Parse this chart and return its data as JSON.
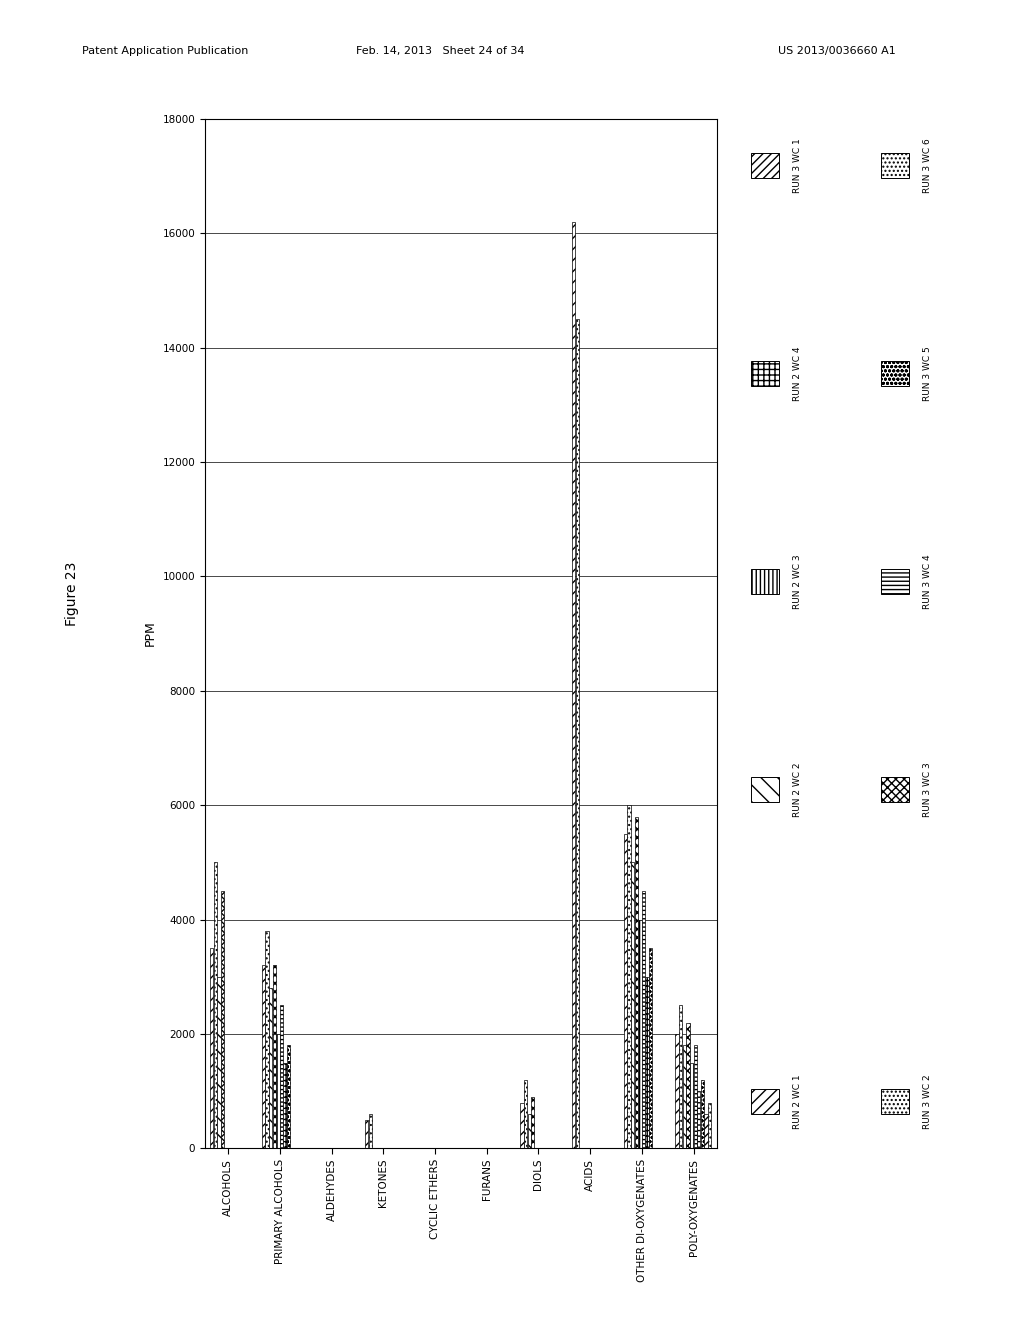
{
  "header_left": "Patent Application Publication",
  "header_mid": "Feb. 14, 2013   Sheet 24 of 34",
  "header_right": "US 2013/0036660 A1",
  "figure_label": "Figure 23",
  "ylabel": "PPM",
  "categories": [
    "ALCOHOLS",
    "PRIMARY ALCOHOLS",
    "ALDEHYDES",
    "KETONES",
    "CYCLIC ETHERS",
    "FURANS",
    "DIOLS",
    "ACIDS",
    "OTHER DI-OXYGENATES",
    "POLY-OXYGENATES"
  ],
  "series": [
    {
      "label": "RUN 2 WC 1",
      "hatch": "///",
      "legend_group": 0
    },
    {
      "label": "RUN 3 WC 2",
      "hatch": "....",
      "legend_group": 0
    },
    {
      "label": "RUN 2 WC 2",
      "hatch": "\\\\",
      "legend_group": 1
    },
    {
      "label": "RUN 3 WC 3",
      "hatch": "xxxx",
      "legend_group": 1
    },
    {
      "label": "RUN 2 WC 3",
      "hatch": "||||",
      "legend_group": 2
    },
    {
      "label": "RUN 3 WC 4",
      "hatch": "----",
      "legend_group": 2
    },
    {
      "label": "RUN 2 WC 4",
      "hatch": "+++",
      "legend_group": 3
    },
    {
      "label": "RUN 3 WC 5",
      "hatch": "oooo",
      "legend_group": 3
    },
    {
      "label": "RUN 3 WC 1",
      "hatch": "////",
      "legend_group": 4
    },
    {
      "label": "RUN 3 WC 6",
      "hatch": "....",
      "legend_group": 4
    }
  ],
  "data": {
    "ALCOHOLS": [
      3500,
      5000,
      3000,
      4500,
      0,
      0,
      0,
      0,
      0,
      0
    ],
    "PRIMARY ALCOHOLS": [
      3200,
      3800,
      2800,
      3200,
      2000,
      2500,
      1500,
      1800,
      0,
      0
    ],
    "ALDEHYDES": [
      0,
      0,
      0,
      0,
      0,
      0,
      0,
      0,
      0,
      0
    ],
    "KETONES": [
      500,
      600,
      0,
      0,
      0,
      0,
      0,
      0,
      0,
      0
    ],
    "CYCLIC ETHERS": [
      0,
      0,
      0,
      0,
      0,
      0,
      0,
      0,
      0,
      0
    ],
    "FURANS": [
      0,
      0,
      0,
      0,
      0,
      0,
      0,
      0,
      0,
      0
    ],
    "DIOLS": [
      800,
      1200,
      600,
      900,
      0,
      0,
      0,
      0,
      0,
      0
    ],
    "ACIDS": [
      16200,
      14500,
      0,
      0,
      0,
      0,
      0,
      0,
      0,
      0
    ],
    "OTHER DI-OXYGENATES": [
      5500,
      6000,
      5000,
      5800,
      4000,
      4500,
      3000,
      3500,
      0,
      0
    ],
    "POLY-OXYGENATES": [
      2000,
      2500,
      1800,
      2200,
      1500,
      1800,
      1000,
      1200,
      600,
      800
    ]
  },
  "legend_pairs": [
    {
      "col1_label": "RUN 2 WC 1",
      "col1_hatch": "///",
      "col2_label": "RUN 3 WC 2",
      "col2_hatch": "...."
    },
    {
      "col1_label": "RUN 2 WC 2",
      "col1_hatch": "\\\\",
      "col2_label": "RUN 3 WC 3",
      "col2_hatch": "xxxx"
    },
    {
      "col1_label": "RUN 2 WC 3",
      "col1_hatch": "||||",
      "col2_label": "RUN 3 WC 4",
      "col2_hatch": "----"
    },
    {
      "col1_label": "RUN 2 WC 4",
      "col1_hatch": "+++",
      "col2_label": "RUN 3 WC 5",
      "col2_hatch": "oooo"
    },
    {
      "col1_label": "RUN 3 WC 1",
      "col1_hatch": "////",
      "col2_label": "RUN 3 WC 6",
      "col2_hatch": "...."
    }
  ],
  "yticks": [
    0,
    2000,
    4000,
    6000,
    8000,
    10000,
    12000,
    14000,
    16000,
    18000
  ],
  "ylim": [
    0,
    18000
  ],
  "background_color": "#ffffff"
}
